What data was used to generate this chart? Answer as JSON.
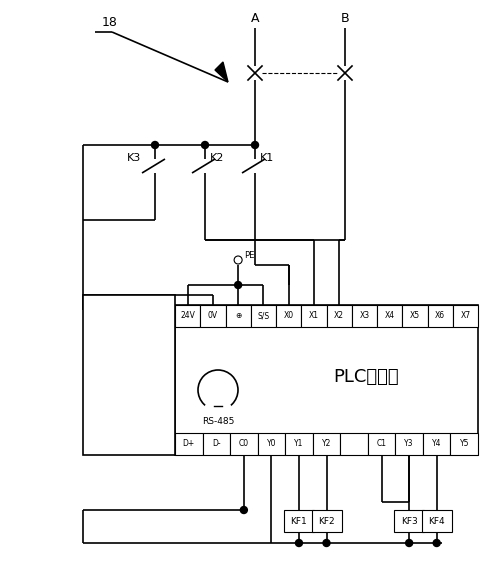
{
  "bg_color": "#ffffff",
  "line_color": "#000000",
  "lw": 1.2,
  "tlw": 0.8,
  "top_labels": [
    "24V",
    "0V",
    "⊕",
    "S/S",
    "X0",
    "X1",
    "X2",
    "X3",
    "X4",
    "X5",
    "X6",
    "X7"
  ],
  "bot_labels": [
    "D+",
    "D-",
    "C0",
    "Y0",
    "Y1",
    "Y2",
    "",
    "C1",
    "Y3",
    "Y4",
    "Y5"
  ],
  "label_18": "18",
  "label_A": "A",
  "label_B": "B",
  "label_K1": "K1",
  "label_K2": "K2",
  "label_K3": "K3",
  "label_PE": "PE",
  "label_PLC": "PLC控制器",
  "label_RS485": "RS-485",
  "label_KF1": "KF1",
  "label_KF2": "KF2",
  "label_KF3": "KF3",
  "label_KF4": "KF4"
}
